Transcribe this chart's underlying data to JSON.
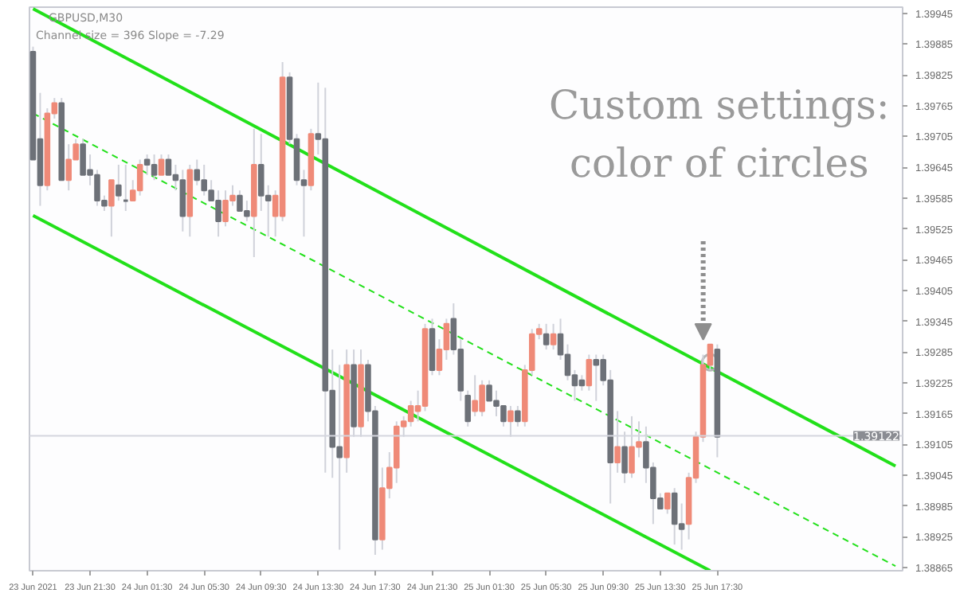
{
  "chart_data": {
    "type": "candlestick",
    "title": "GBPUSD,M30",
    "annotations": [
      "Channel size = 396 Slope = -7.29",
      "Custom settings:\ncolor of circles"
    ],
    "x": [
      "2021-06-23T17:30",
      "2021-06-23T18:00",
      "2021-06-23T18:30",
      "2021-06-23T19:00",
      "2021-06-23T19:30",
      "2021-06-23T20:00",
      "2021-06-23T20:30",
      "2021-06-23T21:00",
      "2021-06-23T21:30",
      "2021-06-23T22:00",
      "2021-06-23T22:30",
      "2021-06-23T23:00",
      "2021-06-23T23:30",
      "2021-06-24T00:00",
      "2021-06-24T00:30",
      "2021-06-24T01:00",
      "2021-06-24T01:30",
      "2021-06-24T02:00",
      "2021-06-24T02:30",
      "2021-06-24T03:00",
      "2021-06-24T03:30",
      "2021-06-24T04:00",
      "2021-06-24T04:30",
      "2021-06-24T05:00",
      "2021-06-24T05:30",
      "2021-06-24T06:00",
      "2021-06-24T06:30",
      "2021-06-24T07:00",
      "2021-06-24T07:30",
      "2021-06-24T08:00",
      "2021-06-24T08:30",
      "2021-06-24T09:00",
      "2021-06-24T09:30",
      "2021-06-24T10:00",
      "2021-06-24T10:30",
      "2021-06-24T11:00",
      "2021-06-24T11:30",
      "2021-06-24T12:00",
      "2021-06-24T12:30",
      "2021-06-24T13:00",
      "2021-06-24T13:30",
      "2021-06-24T14:00",
      "2021-06-24T14:30",
      "2021-06-24T15:00",
      "2021-06-24T15:30",
      "2021-06-24T16:00",
      "2021-06-24T16:30",
      "2021-06-24T17:00",
      "2021-06-24T17:30",
      "2021-06-24T18:00",
      "2021-06-24T18:30",
      "2021-06-24T19:00",
      "2021-06-24T19:30",
      "2021-06-24T20:00",
      "2021-06-24T20:30",
      "2021-06-24T21:00",
      "2021-06-24T21:30",
      "2021-06-24T22:00",
      "2021-06-24T22:30",
      "2021-06-24T23:00",
      "2021-06-24T23:30",
      "2021-06-25T00:00",
      "2021-06-25T00:30",
      "2021-06-25T01:00",
      "2021-06-25T01:30",
      "2021-06-25T02:00",
      "2021-06-25T02:30",
      "2021-06-25T03:00",
      "2021-06-25T03:30",
      "2021-06-25T04:00",
      "2021-06-25T04:30",
      "2021-06-25T05:00",
      "2021-06-25T05:30",
      "2021-06-25T06:00",
      "2021-06-25T06:30",
      "2021-06-25T07:00",
      "2021-06-25T07:30",
      "2021-06-25T08:00",
      "2021-06-25T08:30",
      "2021-06-25T09:00",
      "2021-06-25T09:30",
      "2021-06-25T10:00",
      "2021-06-25T10:30",
      "2021-06-25T11:00",
      "2021-06-25T11:30",
      "2021-06-25T12:00",
      "2021-06-25T12:30",
      "2021-06-25T13:00",
      "2021-06-25T13:30",
      "2021-06-25T14:00",
      "2021-06-25T14:30",
      "2021-06-25T15:00",
      "2021-06-25T15:30",
      "2021-06-25T16:00",
      "2021-06-25T16:30",
      "2021-06-25T17:00",
      "2021-06-25T17:30"
    ],
    "ohlc": [
      [
        1.3987,
        1.3988,
        1.3966,
        1.3966
      ],
      [
        1.397,
        1.3979,
        1.3957,
        1.3961
      ],
      [
        1.3961,
        1.3976,
        1.396,
        1.3975
      ],
      [
        1.3975,
        1.3978,
        1.3974,
        1.3977
      ],
      [
        1.3977,
        1.3978,
        1.3962,
        1.3962
      ],
      [
        1.3962,
        1.3969,
        1.396,
        1.3966
      ],
      [
        1.3966,
        1.397,
        1.3966,
        1.3969
      ],
      [
        1.3969,
        1.397,
        1.3963,
        1.3963
      ],
      [
        1.3964,
        1.3967,
        1.3961,
        1.3963
      ],
      [
        1.3963,
        1.3964,
        1.3957,
        1.3958
      ],
      [
        1.3958,
        1.3959,
        1.3956,
        1.3957
      ],
      [
        1.3957,
        1.3962,
        1.3951,
        1.3962
      ],
      [
        1.3961,
        1.3965,
        1.3958,
        1.3959
      ],
      [
        1.3958,
        1.3965,
        1.3956,
        1.3958
      ],
      [
        1.3958,
        1.3962,
        1.3958,
        1.396
      ],
      [
        1.396,
        1.3966,
        1.3959,
        1.3965
      ],
      [
        1.3966,
        1.3967,
        1.3963,
        1.3965
      ],
      [
        1.3965,
        1.3967,
        1.3962,
        1.3963
      ],
      [
        1.3963,
        1.3967,
        1.3963,
        1.3966
      ],
      [
        1.3966,
        1.3967,
        1.3963,
        1.3963
      ],
      [
        1.3963,
        1.3965,
        1.396,
        1.3962
      ],
      [
        1.3962,
        1.3964,
        1.3952,
        1.3955
      ],
      [
        1.3955,
        1.3965,
        1.3951,
        1.3964
      ],
      [
        1.3964,
        1.3966,
        1.3961,
        1.3962
      ],
      [
        1.3962,
        1.3965,
        1.3959,
        1.396
      ],
      [
        1.396,
        1.3962,
        1.3958,
        1.3958
      ],
      [
        1.3958,
        1.396,
        1.3951,
        1.3954
      ],
      [
        1.3954,
        1.396,
        1.3953,
        1.3958
      ],
      [
        1.3958,
        1.3961,
        1.3957,
        1.3959
      ],
      [
        1.3959,
        1.396,
        1.3956,
        1.3956
      ],
      [
        1.3956,
        1.3958,
        1.3954,
        1.3955
      ],
      [
        1.3955,
        1.3972,
        1.3947,
        1.3965
      ],
      [
        1.3965,
        1.3971,
        1.3956,
        1.3959
      ],
      [
        1.3959,
        1.3961,
        1.3951,
        1.3958
      ],
      [
        1.3955,
        1.396,
        1.3951,
        1.3959
      ],
      [
        1.3955,
        1.3985,
        1.3954,
        1.3982
      ],
      [
        1.3982,
        1.3983,
        1.3969,
        1.397
      ],
      [
        1.397,
        1.3971,
        1.3961,
        1.3962
      ],
      [
        1.3962,
        1.3964,
        1.3951,
        1.3961
      ],
      [
        1.3961,
        1.3972,
        1.396,
        1.3971
      ],
      [
        1.3971,
        1.3981,
        1.3967,
        1.397
      ],
      [
        1.397,
        1.398,
        1.3905,
        1.3921
      ],
      [
        1.3921,
        1.3929,
        1.3904,
        1.391
      ],
      [
        1.391,
        1.3926,
        1.389,
        1.3908
      ],
      [
        1.3908,
        1.3929,
        1.3905,
        1.3926
      ],
      [
        1.3926,
        1.3929,
        1.3912,
        1.3914
      ],
      [
        1.3914,
        1.3929,
        1.3912,
        1.3926
      ],
      [
        1.3926,
        1.3927,
        1.3915,
        1.3917
      ],
      [
        1.3917,
        1.3918,
        1.3889,
        1.3892
      ],
      [
        1.3892,
        1.3906,
        1.389,
        1.3902
      ],
      [
        1.3902,
        1.3909,
        1.39,
        1.3906
      ],
      [
        1.3906,
        1.3915,
        1.3903,
        1.3914
      ],
      [
        1.3914,
        1.3916,
        1.3912,
        1.3915
      ],
      [
        1.3915,
        1.3919,
        1.3914,
        1.3918
      ],
      [
        1.3917,
        1.3921,
        1.3915,
        1.3918
      ],
      [
        1.3918,
        1.3934,
        1.3917,
        1.3933
      ],
      [
        1.3933,
        1.3935,
        1.3924,
        1.3925
      ],
      [
        1.3925,
        1.3931,
        1.3924,
        1.3929
      ],
      [
        1.3929,
        1.3935,
        1.3927,
        1.3934
      ],
      [
        1.3935,
        1.3938,
        1.3928,
        1.3929
      ],
      [
        1.3929,
        1.3931,
        1.3919,
        1.3921
      ],
      [
        1.392,
        1.3921,
        1.3914,
        1.3915
      ],
      [
        1.3917,
        1.3924,
        1.3916,
        1.3919
      ],
      [
        1.3917,
        1.3923,
        1.3916,
        1.3922
      ],
      [
        1.3922,
        1.3923,
        1.3919,
        1.3919
      ],
      [
        1.3919,
        1.3921,
        1.3916,
        1.3918
      ],
      [
        1.3918,
        1.3918,
        1.3914,
        1.3915
      ],
      [
        1.3915,
        1.3918,
        1.3912,
        1.3917
      ],
      [
        1.3917,
        1.3918,
        1.3914,
        1.3915
      ],
      [
        1.3915,
        1.3926,
        1.3914,
        1.3925
      ],
      [
        1.3925,
        1.3933,
        1.3924,
        1.3932
      ],
      [
        1.3932,
        1.3934,
        1.3931,
        1.3933
      ],
      [
        1.3932,
        1.3934,
        1.3929,
        1.393
      ],
      [
        1.393,
        1.3934,
        1.3929,
        1.3932
      ],
      [
        1.3932,
        1.3935,
        1.3927,
        1.3928
      ],
      [
        1.3928,
        1.393,
        1.3923,
        1.3924
      ],
      [
        1.3924,
        1.3925,
        1.3919,
        1.3922
      ],
      [
        1.3923,
        1.3924,
        1.3921,
        1.3922
      ],
      [
        1.3922,
        1.3928,
        1.3921,
        1.3927
      ],
      [
        1.3927,
        1.3928,
        1.3919,
        1.3926
      ],
      [
        1.3927,
        1.3928,
        1.3922,
        1.3923
      ],
      [
        1.3923,
        1.3925,
        1.3899,
        1.3907
      ],
      [
        1.3907,
        1.3917,
        1.3905,
        1.391
      ],
      [
        1.391,
        1.3913,
        1.3903,
        1.3905
      ],
      [
        1.3905,
        1.3916,
        1.3904,
        1.391
      ],
      [
        1.391,
        1.3915,
        1.3908,
        1.3911
      ],
      [
        1.3911,
        1.3914,
        1.3903,
        1.3906
      ],
      [
        1.3906,
        1.3907,
        1.3895,
        1.39
      ],
      [
        1.39,
        1.3901,
        1.3898,
        1.3898
      ],
      [
        1.3898,
        1.3901,
        1.3897,
        1.3901
      ],
      [
        1.3901,
        1.3902,
        1.3891,
        1.3895
      ],
      [
        1.3895,
        1.3899,
        1.389,
        1.3894
      ],
      [
        1.3895,
        1.3905,
        1.3892,
        1.3904
      ],
      [
        1.3904,
        1.3913,
        1.3903,
        1.3912
      ],
      [
        1.3912,
        1.3928,
        1.3911,
        1.3926
      ],
      [
        1.3926,
        1.393,
        1.3925,
        1.393
      ],
      [
        1.3929,
        1.393,
        1.3908,
        1.3912
      ]
    ],
    "colors": [
      "#6d7178",
      "#6d7178",
      "#ef8a78",
      "#ef8a78",
      "#6d7178",
      "#ef8a78",
      "#ef8a78",
      "#6d7178",
      "#6d7178",
      "#6d7178",
      "#6d7178",
      "#ef8a78",
      "#6d7178",
      "#6d7178",
      "#ef8a78",
      "#ef8a78",
      "#6d7178",
      "#6d7178",
      "#ef8a78",
      "#6d7178",
      "#6d7178",
      "#6d7178",
      "#ef8a78",
      "#6d7178",
      "#6d7178",
      "#6d7178",
      "#6d7178",
      "#ef8a78",
      "#ef8a78",
      "#6d7178",
      "#6d7178",
      "#ef8a78",
      "#6d7178",
      "#6d7178",
      "#ef8a78",
      "#ef8a78",
      "#6d7178",
      "#6d7178",
      "#6d7178",
      "#ef8a78",
      "#6d7178",
      "#6d7178",
      "#6d7178",
      "#6d7178",
      "#ef8a78",
      "#6d7178",
      "#ef8a78",
      "#6d7178",
      "#6d7178",
      "#ef8a78",
      "#ef8a78",
      "#ef8a78",
      "#ef8a78",
      "#ef8a78",
      "#ef8a78",
      "#ef8a78",
      "#6d7178",
      "#ef8a78",
      "#ef8a78",
      "#6d7178",
      "#6d7178",
      "#6d7178",
      "#ef8a78",
      "#ef8a78",
      "#6d7178",
      "#6d7178",
      "#6d7178",
      "#ef8a78",
      "#6d7178",
      "#ef8a78",
      "#ef8a78",
      "#ef8a78",
      "#6d7178",
      "#ef8a78",
      "#6d7178",
      "#6d7178",
      "#6d7178",
      "#6d7178",
      "#ef8a78",
      "#6d7178",
      "#6d7178",
      "#6d7178",
      "#ef8a78",
      "#6d7178",
      "#ef8a78",
      "#ef8a78",
      "#6d7178",
      "#6d7178",
      "#6d7178",
      "#ef8a78",
      "#6d7178",
      "#6d7178",
      "#ef8a78",
      "#ef8a78",
      "#ef8a78",
      "#ef8a78",
      "#6d7178"
    ],
    "series": [
      {
        "type": "line",
        "color": "#22e01a",
        "line_style": "solid",
        "x": [
          "2021-06-23T17:30",
          "2021-06-26T06:00"
        ],
        "values": [
          1.39954,
          1.39063
        ]
      },
      {
        "type": "line",
        "color": "#22e01a",
        "line_style": "dashed",
        "x": [
          "2021-06-23T17:30",
          "2021-06-26T06:00"
        ],
        "values": [
          1.3975,
          1.38868
        ]
      },
      {
        "type": "line",
        "color": "#22e01a",
        "line_style": "solid",
        "x": [
          "2021-06-23T17:30",
          "2021-06-25T17:00"
        ],
        "values": [
          1.39551,
          1.38859
        ]
      },
      {
        "type": "scatter",
        "marker": "circle",
        "color": "#b4b4b4",
        "x": [
          "2021-06-25T17:00"
        ],
        "values": [
          1.39265
        ]
      }
    ],
    "ref_lines": [
      {
        "axis": "y",
        "value": 1.39122,
        "label": "1.39122",
        "color": "#d4d6de"
      }
    ],
    "xlim": [
      "2021-06-23T17:15",
      "2021-06-26T06:30"
    ],
    "ylim": [
      1.38859,
      1.39957
    ],
    "xticks": [
      {
        "value": "2021-06-23T17:30",
        "label": "23 Jun 2021"
      },
      {
        "value": "2021-06-23T21:30",
        "label": "23 Jun 21:30"
      },
      {
        "value": "2021-06-24T01:30",
        "label": "24 Jun 01:30"
      },
      {
        "value": "2021-06-24T05:30",
        "label": "24 Jun 05:30"
      },
      {
        "value": "2021-06-24T09:30",
        "label": "24 Jun 09:30"
      },
      {
        "value": "2021-06-24T13:30",
        "label": "24 Jun 13:30"
      },
      {
        "value": "2021-06-24T17:30",
        "label": "24 Jun 17:30"
      },
      {
        "value": "2021-06-24T21:30",
        "label": "24 Jun 21:30"
      },
      {
        "value": "2021-06-25T01:30",
        "label": "25 Jun 01:30"
      },
      {
        "value": "2021-06-25T05:30",
        "label": "25 Jun 05:30"
      },
      {
        "value": "2021-06-25T09:30",
        "label": "25 Jun 09:30"
      },
      {
        "value": "2021-06-25T13:30",
        "label": "25 Jun 13:30"
      },
      {
        "value": "2021-06-25T17:30",
        "label": "25 Jun 17:30"
      }
    ],
    "yticks": [
      1.39945,
      1.39885,
      1.39825,
      1.39765,
      1.39705,
      1.39645,
      1.39585,
      1.39525,
      1.39465,
      1.39405,
      1.39345,
      1.39285,
      1.39225,
      1.39165,
      1.39105,
      1.39045,
      1.38985,
      1.38925,
      1.38865
    ],
    "grid": false
  }
}
